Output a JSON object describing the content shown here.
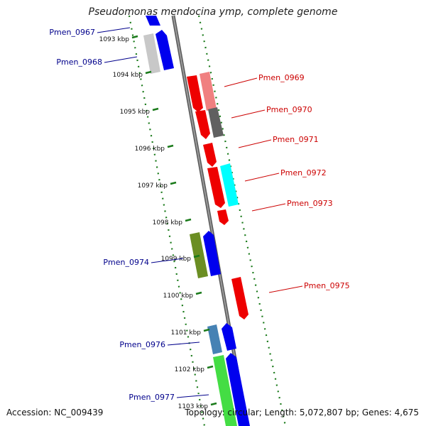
{
  "title": "Pseudomonas mendocina ymp, complete genome",
  "footer": {
    "accession": "Accession: NC_009439",
    "topology": "Topology: circular; Length: 5,072,807 bp; Genes: 4,675"
  },
  "colors": {
    "reverse_label": "#00008b",
    "forward_label": "#cc0000",
    "backbone": "#808080",
    "tick": "#1a7a1a"
  },
  "scale_ticks": [
    "1093 kbp",
    "1094 kbp",
    "1095 kbp",
    "1096 kbp",
    "1097 kbp",
    "1098 kbp",
    "1099 kbp",
    "1100 kbp",
    "1101 kbp",
    "1102 kbp",
    "1103 kbp"
  ],
  "reverse_labels": [
    "Pmen_0967",
    "Pmen_0968",
    "Pmen_0974",
    "Pmen_0976",
    "Pmen_0977"
  ],
  "forward_labels": [
    "Pmen_0969",
    "Pmen_0970",
    "Pmen_0971",
    "Pmen_0972",
    "Pmen_0973",
    "Pmen_0975"
  ]
}
